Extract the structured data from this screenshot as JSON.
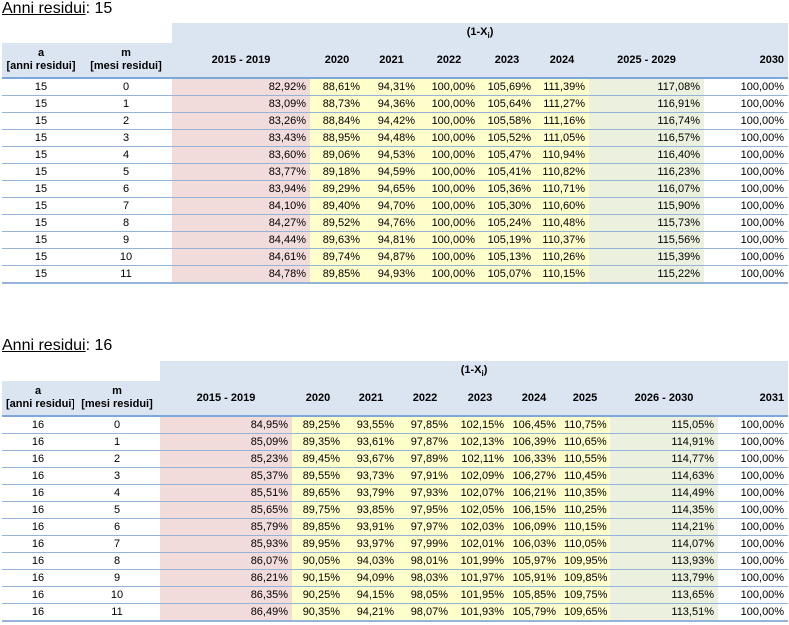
{
  "sections": [
    {
      "title_label": "Anni residui",
      "title_value": ": 15",
      "group_header": "(1-X",
      "group_header_sub": "i",
      "group_header_end": ")",
      "col_a": [
        "a",
        "[anni residui]"
      ],
      "col_m": [
        "m",
        "[mesi residui]"
      ],
      "columns": [
        "2015 - 2019",
        "2020",
        "2021",
        "2022",
        "2023",
        "2024",
        "2025 - 2029",
        "2030"
      ],
      "rows": [
        [
          "15",
          "0",
          "82,92%",
          "88,61%",
          "94,31%",
          "100,00%",
          "105,69%",
          "111,39%",
          "117,08%",
          "100,00%"
        ],
        [
          "15",
          "1",
          "83,09%",
          "88,73%",
          "94,36%",
          "100,00%",
          "105,64%",
          "111,27%",
          "116,91%",
          "100,00%"
        ],
        [
          "15",
          "2",
          "83,26%",
          "88,84%",
          "94,42%",
          "100,00%",
          "105,58%",
          "111,16%",
          "116,74%",
          "100,00%"
        ],
        [
          "15",
          "3",
          "83,43%",
          "88,95%",
          "94,48%",
          "100,00%",
          "105,52%",
          "111,05%",
          "116,57%",
          "100,00%"
        ],
        [
          "15",
          "4",
          "83,60%",
          "89,06%",
          "94,53%",
          "100,00%",
          "105,47%",
          "110,94%",
          "116,40%",
          "100,00%"
        ],
        [
          "15",
          "5",
          "83,77%",
          "89,18%",
          "94,59%",
          "100,00%",
          "105,41%",
          "110,82%",
          "116,23%",
          "100,00%"
        ],
        [
          "15",
          "6",
          "83,94%",
          "89,29%",
          "94,65%",
          "100,00%",
          "105,36%",
          "110,71%",
          "116,07%",
          "100,00%"
        ],
        [
          "15",
          "7",
          "84,10%",
          "89,40%",
          "94,70%",
          "100,00%",
          "105,30%",
          "110,60%",
          "115,90%",
          "100,00%"
        ],
        [
          "15",
          "8",
          "84,27%",
          "89,52%",
          "94,76%",
          "100,00%",
          "105,24%",
          "110,48%",
          "115,73%",
          "100,00%"
        ],
        [
          "15",
          "9",
          "84,44%",
          "89,63%",
          "94,81%",
          "100,00%",
          "105,19%",
          "110,37%",
          "115,56%",
          "100,00%"
        ],
        [
          "15",
          "10",
          "84,61%",
          "89,74%",
          "94,87%",
          "100,00%",
          "105,13%",
          "110,26%",
          "115,39%",
          "100,00%"
        ],
        [
          "15",
          "11",
          "84,78%",
          "89,85%",
          "94,93%",
          "100,00%",
          "105,07%",
          "110,15%",
          "115,22%",
          "100,00%"
        ]
      ]
    },
    {
      "title_label": "Anni residui",
      "title_value": ": 16",
      "group_header": "(1-X",
      "group_header_sub": "i",
      "group_header_end": ")",
      "col_a": [
        "a",
        "[anni residui]"
      ],
      "col_m": [
        "m",
        "[mesi residui]"
      ],
      "columns": [
        "2015 - 2019",
        "2020",
        "2021",
        "2022",
        "2023",
        "2024",
        "2025",
        "2026 - 2030",
        "2031"
      ],
      "rows": [
        [
          "16",
          "0",
          "84,95%",
          "89,25%",
          "93,55%",
          "97,85%",
          "102,15%",
          "106,45%",
          "110,75%",
          "115,05%",
          "100,00%"
        ],
        [
          "16",
          "1",
          "85,09%",
          "89,35%",
          "93,61%",
          "97,87%",
          "102,13%",
          "106,39%",
          "110,65%",
          "114,91%",
          "100,00%"
        ],
        [
          "16",
          "2",
          "85,23%",
          "89,45%",
          "93,67%",
          "97,89%",
          "102,11%",
          "106,33%",
          "110,55%",
          "114,77%",
          "100,00%"
        ],
        [
          "16",
          "3",
          "85,37%",
          "89,55%",
          "93,73%",
          "97,91%",
          "102,09%",
          "106,27%",
          "110,45%",
          "114,63%",
          "100,00%"
        ],
        [
          "16",
          "4",
          "85,51%",
          "89,65%",
          "93,79%",
          "97,93%",
          "102,07%",
          "106,21%",
          "110,35%",
          "114,49%",
          "100,00%"
        ],
        [
          "16",
          "5",
          "85,65%",
          "89,75%",
          "93,85%",
          "97,95%",
          "102,05%",
          "106,15%",
          "110,25%",
          "114,35%",
          "100,00%"
        ],
        [
          "16",
          "6",
          "85,79%",
          "89,85%",
          "93,91%",
          "97,97%",
          "102,03%",
          "106,09%",
          "110,15%",
          "114,21%",
          "100,00%"
        ],
        [
          "16",
          "7",
          "85,93%",
          "89,95%",
          "93,97%",
          "97,99%",
          "102,01%",
          "106,03%",
          "110,05%",
          "114,07%",
          "100,00%"
        ],
        [
          "16",
          "8",
          "86,07%",
          "90,05%",
          "94,03%",
          "98,01%",
          "101,99%",
          "105,97%",
          "109,95%",
          "113,93%",
          "100,00%"
        ],
        [
          "16",
          "9",
          "86,21%",
          "90,15%",
          "94,09%",
          "98,03%",
          "101,97%",
          "105,91%",
          "109,85%",
          "113,79%",
          "100,00%"
        ],
        [
          "16",
          "10",
          "86,35%",
          "90,25%",
          "94,15%",
          "98,05%",
          "101,95%",
          "105,85%",
          "109,75%",
          "113,65%",
          "100,00%"
        ],
        [
          "16",
          "11",
          "86,49%",
          "90,35%",
          "94,21%",
          "98,07%",
          "101,93%",
          "105,79%",
          "109,65%",
          "113,51%",
          "100,00%"
        ]
      ]
    }
  ],
  "colors": {
    "header": "#dbe5f1",
    "pink": "#f2dcdb",
    "yellow": "#ffffcc",
    "green": "#ebf1de",
    "rule": "#95b3d7"
  }
}
